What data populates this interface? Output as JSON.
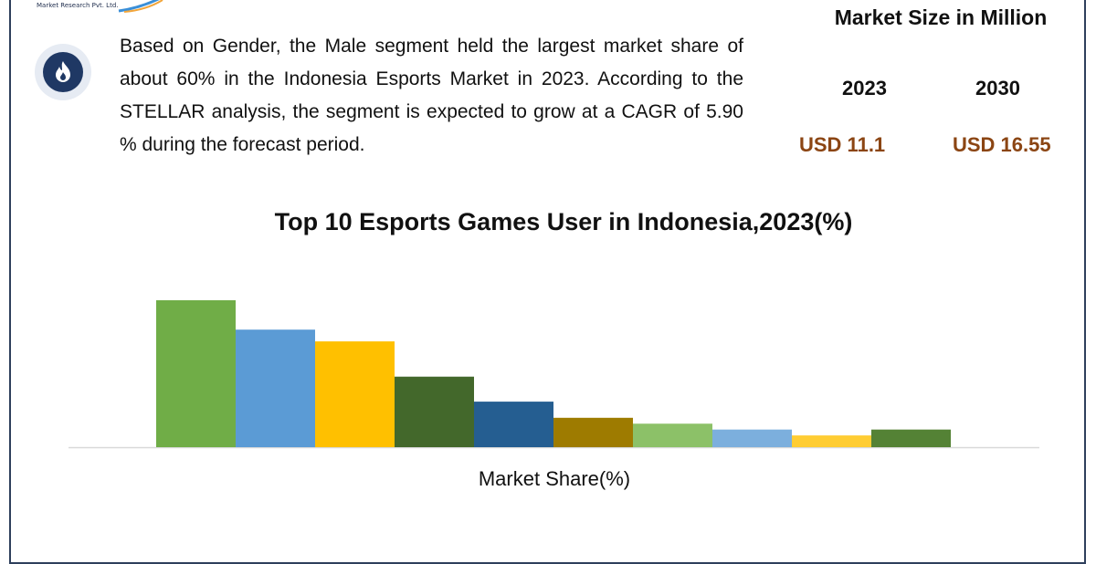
{
  "header": {
    "logo_text": "Market Research Pvt. Ltd."
  },
  "icon": "flame-icon",
  "summary": "Based on Gender, the Male segment held the largest market share of about 60% in the Indonesia Esports Market in 2023. According to the STELLAR analysis, the segment is expected to grow at a CAGR of 5.90 % during the forecast period.",
  "market_size": {
    "title": "Market Size in Million",
    "years": [
      {
        "year": "2023",
        "value": "USD 11.1"
      },
      {
        "year": "2030",
        "value": "USD 16.55"
      }
    ]
  },
  "chart_data": {
    "type": "bar",
    "title": "Top 10 Esports Games User in Indonesia,2023(%)",
    "xlabel": "Market Share(%)",
    "ylabel": "",
    "ylim": [
      0,
      100
    ],
    "values": [
      100,
      80,
      72,
      48,
      31,
      20,
      16,
      12,
      8,
      12
    ],
    "colors": [
      "#70ad47",
      "#5b9bd5",
      "#ffc000",
      "#43682b",
      "#255e91",
      "#9e7b00",
      "#8cc168",
      "#7cafdd",
      "#ffcd33",
      "#548235"
    ],
    "grid": false,
    "legend": "none"
  },
  "colors": {
    "frame": "#2e3f5c",
    "badge": "#1f3864",
    "value_text": "#8b4513"
  }
}
